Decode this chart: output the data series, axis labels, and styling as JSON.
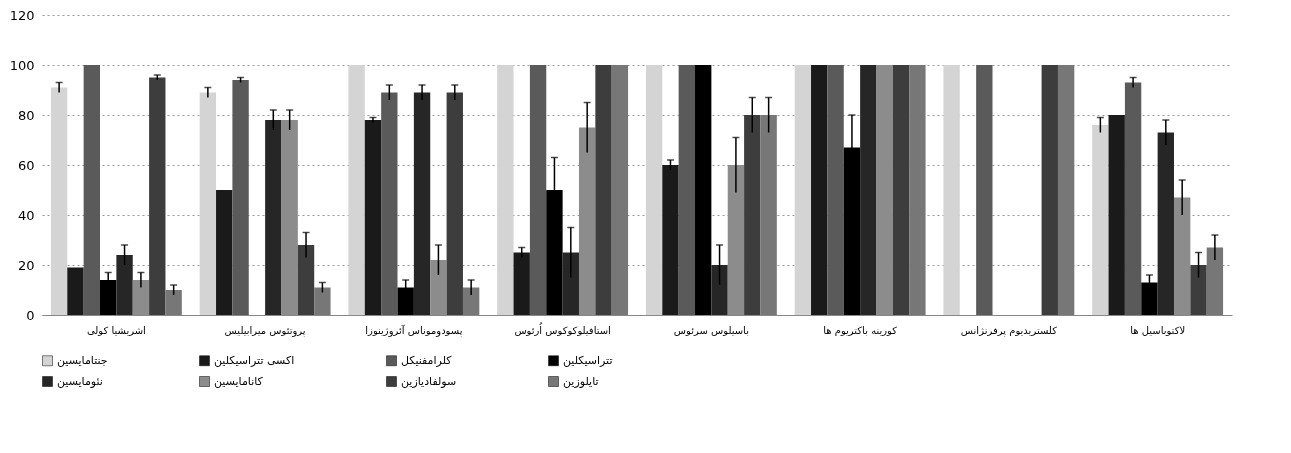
{
  "chart_data": {
    "type": "bar",
    "categories": [
      "اشریشیا کولی",
      "پروتئوس میرابیلیس",
      "پسودوموناس آئروژینوزا",
      "استافیلوکوکوس اُرئوس",
      "باسیلوس سرئوس",
      "کورینه باکتریوم ها",
      "کلستریدیوم پرفرنژانس",
      "لاکتوباسیل ها"
    ],
    "series": [
      {
        "name": "جنتامایسین",
        "color": "#d4d4d4",
        "values": [
          91,
          89,
          100,
          100,
          100,
          100,
          100,
          76
        ],
        "errors": [
          2,
          2,
          null,
          null,
          null,
          null,
          null,
          3
        ]
      },
      {
        "name": "اکسی تتراسیکلین",
        "color": "#1a1a1a",
        "values": [
          19,
          50,
          78,
          25,
          60,
          100,
          0,
          80
        ],
        "errors": [
          null,
          null,
          1,
          2,
          2,
          null,
          null,
          null
        ]
      },
      {
        "name": "کلرامفنیکل",
        "color": "#5a5a5a",
        "values": [
          100,
          94,
          89,
          100,
          100,
          100,
          100,
          93
        ],
        "errors": [
          null,
          1,
          3,
          null,
          null,
          null,
          null,
          2
        ]
      },
      {
        "name": "تتراسیکلین",
        "color": "#000000",
        "values": [
          14,
          0,
          11,
          50,
          100,
          67,
          0,
          13
        ],
        "errors": [
          3,
          null,
          3,
          13,
          null,
          13,
          null,
          3
        ]
      },
      {
        "name": "نئومایسین",
        "color": "#262626",
        "values": [
          24,
          78,
          89,
          25,
          20,
          100,
          0,
          73
        ],
        "errors": [
          4,
          4,
          3,
          10,
          8,
          null,
          null,
          5
        ]
      },
      {
        "name": "کانامایسین",
        "color": "#8c8c8c",
        "values": [
          14,
          78,
          22,
          75,
          60,
          100,
          0,
          47
        ],
        "errors": [
          3,
          4,
          6,
          10,
          11,
          null,
          null,
          7
        ]
      },
      {
        "name": "سولفادیازین",
        "color": "#3d3d3d",
        "values": [
          95,
          28,
          89,
          100,
          80,
          100,
          100,
          20
        ],
        "errors": [
          1,
          5,
          3,
          null,
          7,
          null,
          null,
          5
        ]
      },
      {
        "name": "تایلوزین",
        "color": "#777777",
        "values": [
          10,
          11,
          11,
          100,
          80,
          100,
          100,
          27
        ],
        "errors": [
          2,
          2,
          3,
          null,
          7,
          null,
          null,
          5
        ]
      }
    ],
    "ylim": [
      0,
      120
    ],
    "yticks": [
      0,
      20,
      40,
      60,
      80,
      100,
      120
    ],
    "grid": "y",
    "legend": "bottom"
  }
}
